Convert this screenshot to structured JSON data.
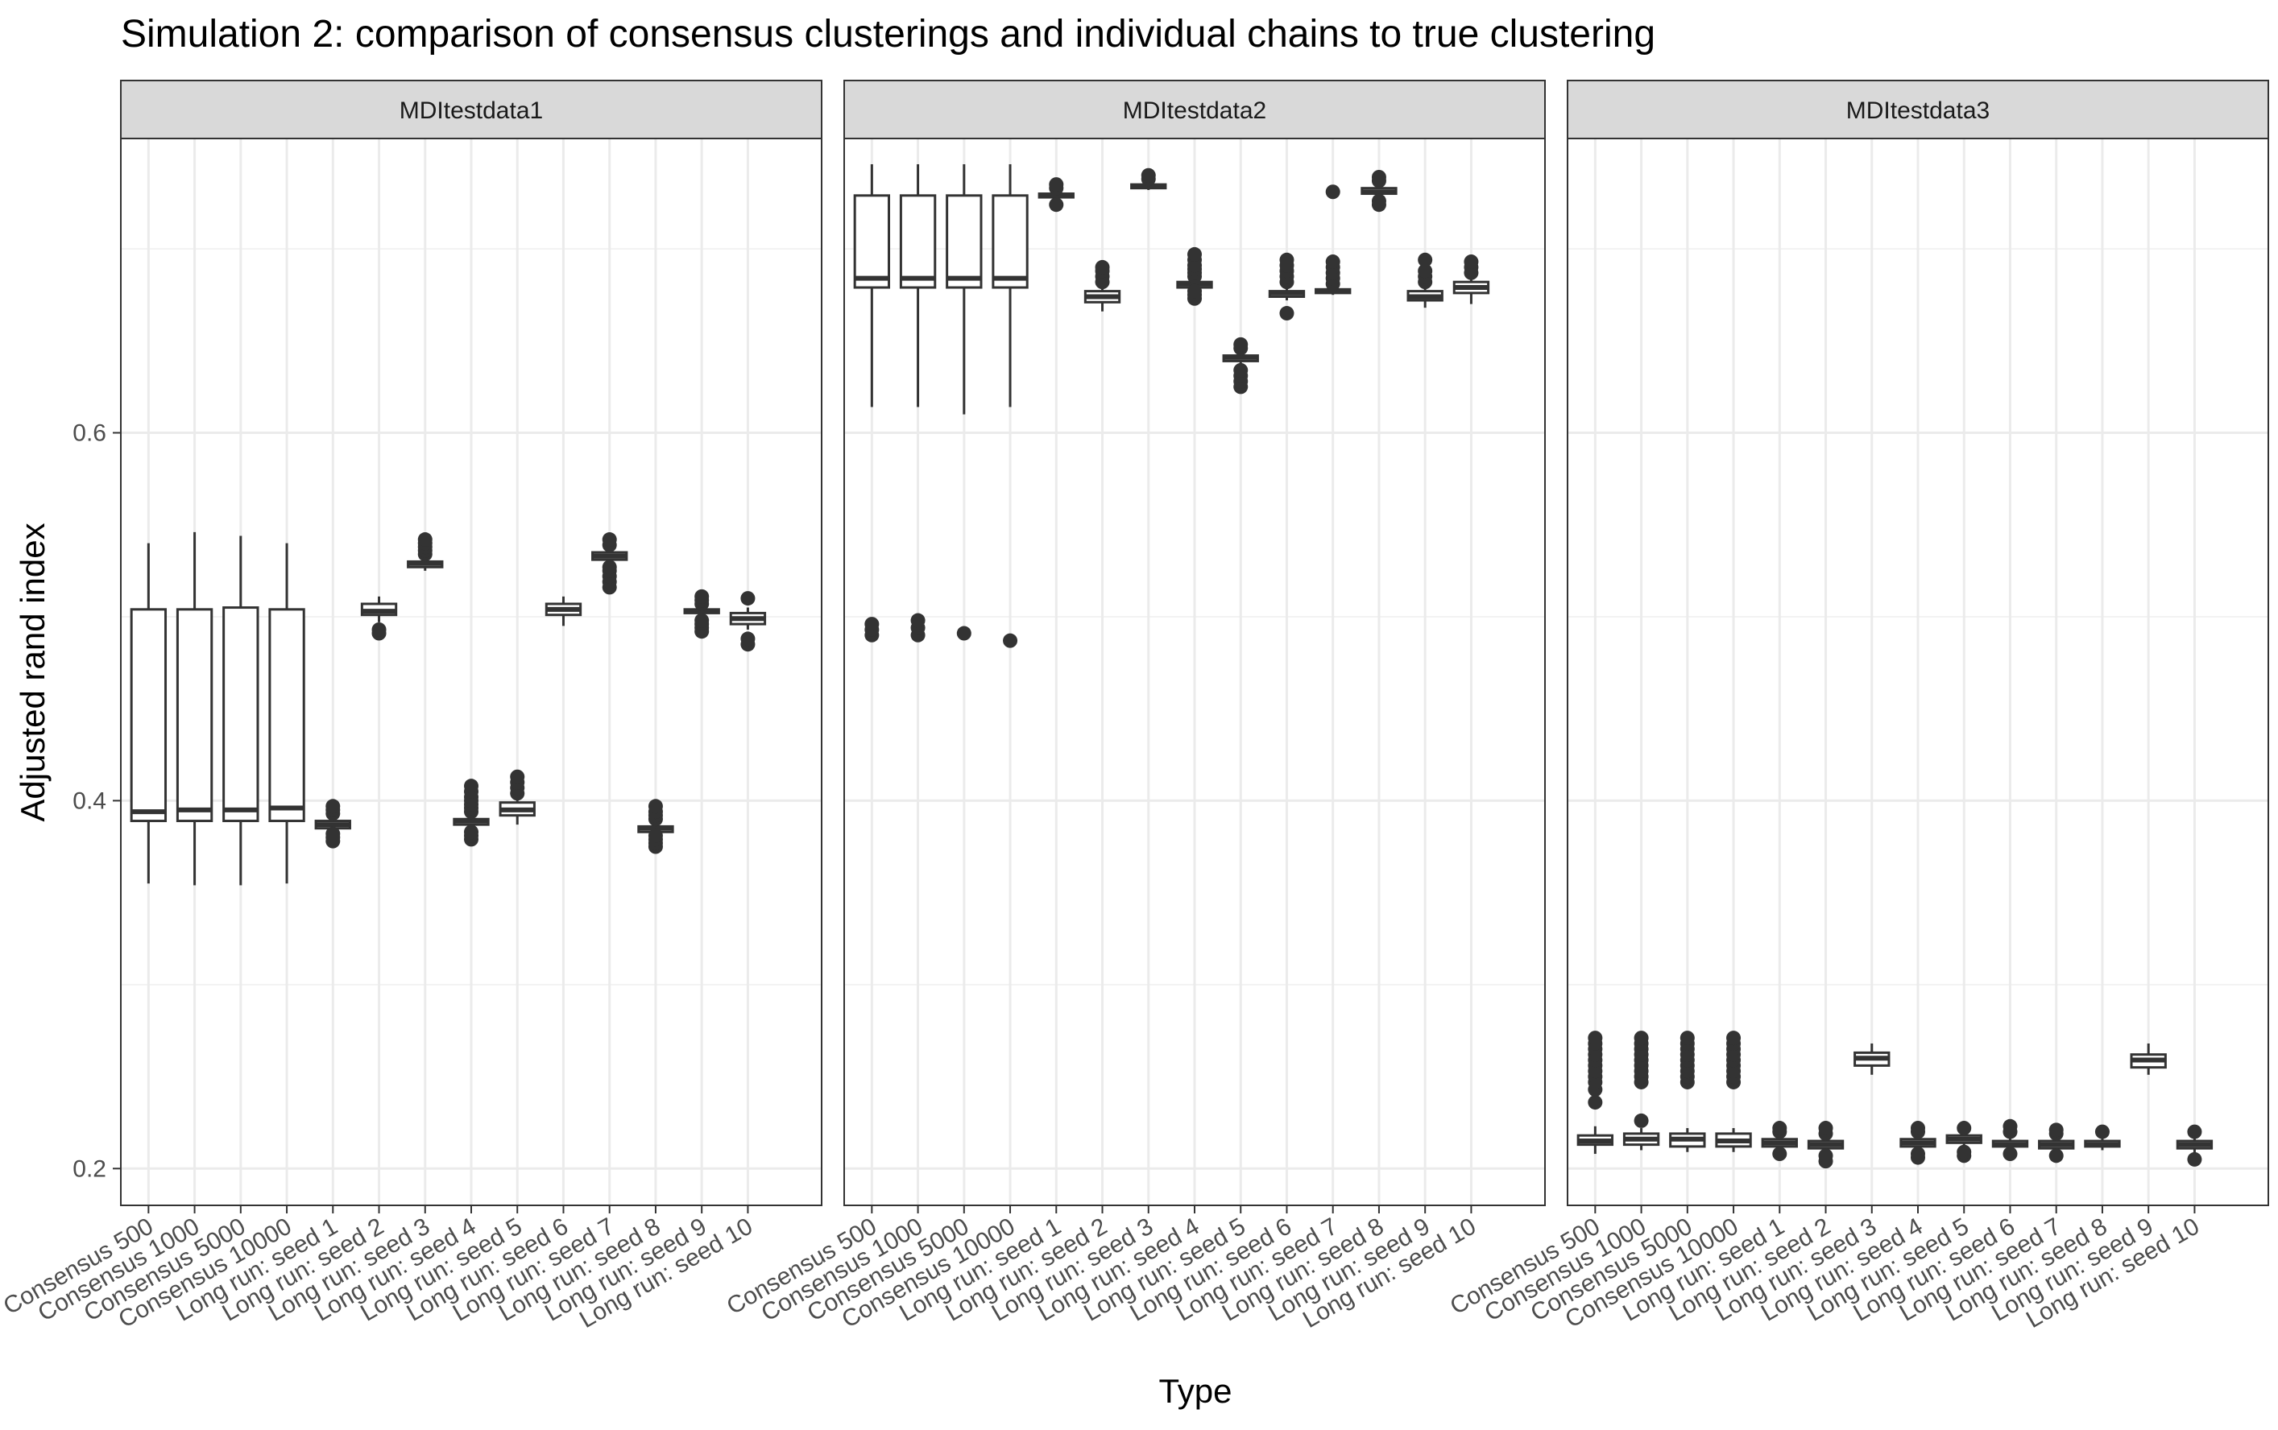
{
  "chart_data": {
    "type": "boxplot",
    "title": "Simulation 2: comparison of consensus clusterings and individual chains to true clustering",
    "xlabel": "Type",
    "ylabel": "Adjusted rand index",
    "ylim": [
      0.18,
      0.76
    ],
    "y_ticks": [
      0.2,
      0.4,
      0.6
    ],
    "y_tick_labels": [
      "0.2",
      "0.4",
      "0.6"
    ],
    "grid": true,
    "categories": [
      "Consensus 500",
      "Consensus 1000",
      "Consensus 5000",
      "Consensus 10000",
      "Long run: seed 1",
      "Long run: seed 2",
      "Long run: seed 3",
      "Long run: seed 4",
      "Long run: seed 5",
      "Long run: seed 6",
      "Long run: seed 7",
      "Long run: seed 8",
      "Long run: seed 9",
      "Long run: seed 10"
    ],
    "panels": [
      {
        "name": "MDItestdata1",
        "boxes": [
          {
            "min": 0.355,
            "q1": 0.389,
            "median": 0.394,
            "q3": 0.504,
            "max": 0.54,
            "outliers": []
          },
          {
            "min": 0.354,
            "q1": 0.389,
            "median": 0.395,
            "q3": 0.504,
            "max": 0.546,
            "outliers": []
          },
          {
            "min": 0.354,
            "q1": 0.389,
            "median": 0.395,
            "q3": 0.505,
            "max": 0.544,
            "outliers": []
          },
          {
            "min": 0.355,
            "q1": 0.389,
            "median": 0.396,
            "q3": 0.504,
            "max": 0.54,
            "outliers": []
          },
          {
            "min": 0.384,
            "q1": 0.385,
            "median": 0.387,
            "q3": 0.389,
            "max": 0.391,
            "outliers": [
              0.378,
              0.38,
              0.382,
              0.393,
              0.395,
              0.397
            ]
          },
          {
            "min": 0.497,
            "q1": 0.501,
            "median": 0.503,
            "q3": 0.507,
            "max": 0.511,
            "outliers": [
              0.491,
              0.493
            ]
          },
          {
            "min": 0.525,
            "q1": 0.527,
            "median": 0.529,
            "q3": 0.53,
            "max": 0.532,
            "outliers": [
              0.534,
              0.536,
              0.538,
              0.54,
              0.542
            ]
          },
          {
            "min": 0.385,
            "q1": 0.387,
            "median": 0.389,
            "q3": 0.39,
            "max": 0.392,
            "outliers": [
              0.379,
              0.381,
              0.383,
              0.394,
              0.396,
              0.398,
              0.4,
              0.402,
              0.405,
              0.408
            ]
          },
          {
            "min": 0.387,
            "q1": 0.392,
            "median": 0.395,
            "q3": 0.399,
            "max": 0.401,
            "outliers": [
              0.404,
              0.407,
              0.41,
              0.413
            ]
          },
          {
            "min": 0.495,
            "q1": 0.501,
            "median": 0.504,
            "q3": 0.507,
            "max": 0.511,
            "outliers": []
          },
          {
            "min": 0.529,
            "q1": 0.531,
            "median": 0.533,
            "q3": 0.535,
            "max": 0.537,
            "outliers": [
              0.516,
              0.519,
              0.522,
              0.525,
              0.527,
              0.539,
              0.542
            ]
          },
          {
            "min": 0.382,
            "q1": 0.383,
            "median": 0.385,
            "q3": 0.386,
            "max": 0.388,
            "outliers": [
              0.375,
              0.377,
              0.379,
              0.381,
              0.39,
              0.392,
              0.394,
              0.397
            ]
          },
          {
            "min": 0.5,
            "q1": 0.502,
            "median": 0.503,
            "q3": 0.504,
            "max": 0.505,
            "outliers": [
              0.492,
              0.494,
              0.496,
              0.498,
              0.507,
              0.509,
              0.511
            ]
          },
          {
            "min": 0.493,
            "q1": 0.496,
            "median": 0.499,
            "q3": 0.502,
            "max": 0.505,
            "outliers": [
              0.485,
              0.488,
              0.51
            ]
          }
        ]
      },
      {
        "name": "MDItestdata2",
        "boxes": [
          {
            "min": 0.614,
            "q1": 0.679,
            "median": 0.684,
            "q3": 0.729,
            "max": 0.746,
            "outliers": [
              0.49,
              0.493,
              0.496
            ]
          },
          {
            "min": 0.614,
            "q1": 0.679,
            "median": 0.684,
            "q3": 0.729,
            "max": 0.746,
            "outliers": [
              0.49,
              0.494,
              0.498
            ]
          },
          {
            "min": 0.61,
            "q1": 0.679,
            "median": 0.684,
            "q3": 0.729,
            "max": 0.746,
            "outliers": [
              0.491
            ]
          },
          {
            "min": 0.614,
            "q1": 0.679,
            "median": 0.684,
            "q3": 0.729,
            "max": 0.746,
            "outliers": [
              0.487
            ]
          },
          {
            "min": 0.726,
            "q1": 0.728,
            "median": 0.729,
            "q3": 0.73,
            "max": 0.731,
            "outliers": [
              0.724,
              0.733,
              0.735
            ]
          },
          {
            "min": 0.666,
            "q1": 0.671,
            "median": 0.674,
            "q3": 0.677,
            "max": 0.679,
            "outliers": [
              0.682,
              0.685,
              0.688,
              0.69
            ]
          },
          {
            "min": 0.732,
            "q1": 0.733,
            "median": 0.734,
            "q3": 0.735,
            "max": 0.736,
            "outliers": [
              0.738,
              0.74
            ]
          },
          {
            "min": 0.678,
            "q1": 0.679,
            "median": 0.681,
            "q3": 0.682,
            "max": 0.683,
            "outliers": [
              0.673,
              0.675,
              0.677,
              0.685,
              0.687,
              0.689,
              0.691,
              0.694,
              0.697
            ]
          },
          {
            "min": 0.637,
            "q1": 0.639,
            "median": 0.641,
            "q3": 0.642,
            "max": 0.644,
            "outliers": [
              0.625,
              0.628,
              0.631,
              0.634,
              0.646,
              0.648
            ]
          },
          {
            "min": 0.672,
            "q1": 0.674,
            "median": 0.676,
            "q3": 0.677,
            "max": 0.679,
            "outliers": [
              0.665,
              0.682,
              0.685,
              0.688,
              0.691,
              0.694
            ]
          },
          {
            "min": 0.675,
            "q1": 0.676,
            "median": 0.677,
            "q3": 0.678,
            "max": 0.679,
            "outliers": [
              0.681,
              0.684,
              0.687,
              0.69,
              0.693,
              0.731
            ]
          },
          {
            "min": 0.729,
            "q1": 0.73,
            "median": 0.731,
            "q3": 0.733,
            "max": 0.735,
            "outliers": [
              0.724,
              0.726,
              0.737,
              0.739
            ]
          },
          {
            "min": 0.668,
            "q1": 0.672,
            "median": 0.674,
            "q3": 0.677,
            "max": 0.679,
            "outliers": [
              0.682,
              0.685,
              0.688,
              0.694
            ]
          },
          {
            "min": 0.67,
            "q1": 0.676,
            "median": 0.679,
            "q3": 0.682,
            "max": 0.684,
            "outliers": [
              0.687,
              0.69,
              0.693
            ]
          }
        ]
      },
      {
        "name": "MDItestdata3",
        "boxes": [
          {
            "min": 0.208,
            "q1": 0.213,
            "median": 0.215,
            "q3": 0.218,
            "max": 0.223,
            "outliers": [
              0.236,
              0.243,
              0.247,
              0.25,
              0.253,
              0.256,
              0.259,
              0.262,
              0.265,
              0.268,
              0.271
            ]
          },
          {
            "min": 0.21,
            "q1": 0.213,
            "median": 0.216,
            "q3": 0.219,
            "max": 0.222,
            "outliers": [
              0.226,
              0.247,
              0.25,
              0.253,
              0.256,
              0.259,
              0.262,
              0.265,
              0.268,
              0.271
            ]
          },
          {
            "min": 0.209,
            "q1": 0.212,
            "median": 0.216,
            "q3": 0.219,
            "max": 0.222,
            "outliers": [
              0.247,
              0.25,
              0.253,
              0.256,
              0.259,
              0.262,
              0.265,
              0.268,
              0.271
            ]
          },
          {
            "min": 0.209,
            "q1": 0.212,
            "median": 0.215,
            "q3": 0.219,
            "max": 0.222,
            "outliers": [
              0.247,
              0.25,
              0.253,
              0.256,
              0.259,
              0.262,
              0.265,
              0.268,
              0.271
            ]
          },
          {
            "min": 0.21,
            "q1": 0.212,
            "median": 0.214,
            "q3": 0.216,
            "max": 0.218,
            "outliers": [
              0.208,
              0.22,
              0.222
            ]
          },
          {
            "min": 0.209,
            "q1": 0.211,
            "median": 0.213,
            "q3": 0.215,
            "max": 0.217,
            "outliers": [
              0.204,
              0.207,
              0.219,
              0.222
            ]
          },
          {
            "min": 0.251,
            "q1": 0.256,
            "median": 0.26,
            "q3": 0.263,
            "max": 0.268,
            "outliers": []
          },
          {
            "min": 0.21,
            "q1": 0.212,
            "median": 0.214,
            "q3": 0.216,
            "max": 0.218,
            "outliers": [
              0.206,
              0.208,
              0.22,
              0.222
            ]
          },
          {
            "min": 0.212,
            "q1": 0.214,
            "median": 0.216,
            "q3": 0.218,
            "max": 0.22,
            "outliers": [
              0.207,
              0.209,
              0.222
            ]
          },
          {
            "min": 0.21,
            "q1": 0.212,
            "median": 0.213,
            "q3": 0.215,
            "max": 0.217,
            "outliers": [
              0.208,
              0.22,
              0.223
            ]
          },
          {
            "min": 0.21,
            "q1": 0.211,
            "median": 0.213,
            "q3": 0.215,
            "max": 0.217,
            "outliers": [
              0.207,
              0.219,
              0.221
            ]
          },
          {
            "min": 0.21,
            "q1": 0.212,
            "median": 0.213,
            "q3": 0.215,
            "max": 0.217,
            "outliers": [
              0.22
            ]
          },
          {
            "min": 0.251,
            "q1": 0.255,
            "median": 0.259,
            "q3": 0.262,
            "max": 0.268,
            "outliers": []
          },
          {
            "min": 0.208,
            "q1": 0.211,
            "median": 0.213,
            "q3": 0.215,
            "max": 0.217,
            "outliers": [
              0.205,
              0.22
            ]
          }
        ]
      }
    ]
  }
}
